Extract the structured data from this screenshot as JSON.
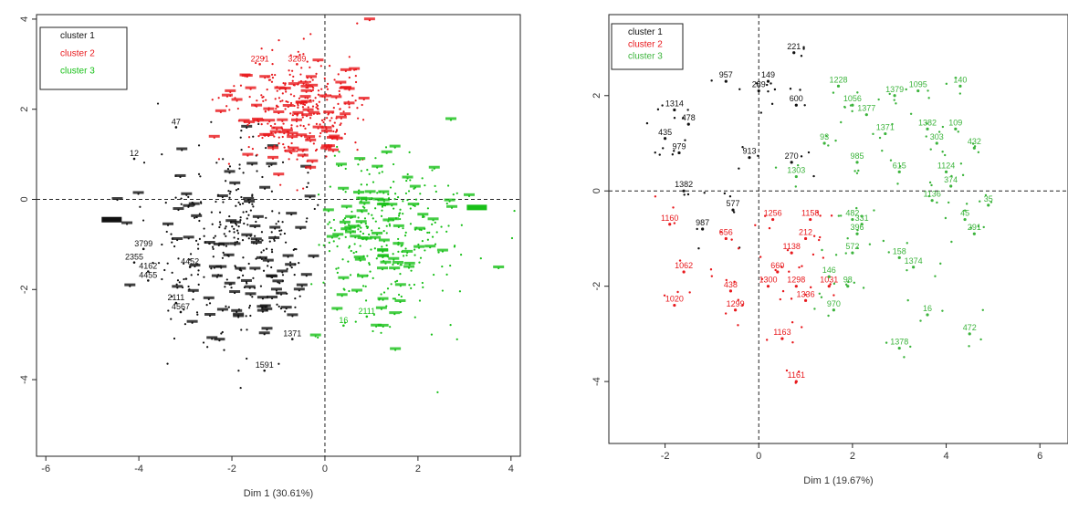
{
  "chart_data": [
    {
      "type": "scatter",
      "panel": "left",
      "xlabel": "Dim 1 (30.61%)",
      "ylabel": "",
      "xlim": [
        -6.2,
        4.2
      ],
      "ylim": [
        -5.7,
        4.1
      ],
      "xticks": [
        "-6",
        "-4",
        "-2",
        "0",
        "2",
        "4"
      ],
      "xtick_values": [
        -6,
        -4,
        -2,
        0,
        2,
        4
      ],
      "yticks": [
        "4",
        "2",
        "0",
        "-2",
        "-4"
      ],
      "ytick_values": [
        4,
        2,
        0,
        -2,
        -4
      ],
      "reference_lines": {
        "x": 0,
        "y": 0
      },
      "legend": {
        "position": "top-left",
        "entries": [
          {
            "label": "cluster 1",
            "color": "#111111"
          },
          {
            "label": "cluster 2",
            "color": "#e8181c"
          },
          {
            "label": "cluster 3",
            "color": "#18c018"
          }
        ]
      },
      "series": [
        {
          "name": "cluster 1",
          "color": "#111111",
          "region": "left and lower-left",
          "approx_count": 1400,
          "labeled_points": [
            {
              "label": "2355",
              "x": -4.1,
              "y": -1.4
            },
            {
              "label": "4162",
              "x": -3.8,
              "y": -1.6
            },
            {
              "label": "4455",
              "x": -3.8,
              "y": -1.8
            },
            {
              "label": "4567",
              "x": -3.1,
              "y": -2.5
            },
            {
              "label": "2111",
              "x": -3.2,
              "y": -2.3
            },
            {
              "label": "4452",
              "x": -2.9,
              "y": -1.5
            },
            {
              "label": "1371",
              "x": -0.7,
              "y": -3.1
            },
            {
              "label": "1591",
              "x": -1.3,
              "y": -3.8
            },
            {
              "label": "3799",
              "x": -3.9,
              "y": -1.1
            },
            {
              "label": "47",
              "x": -3.2,
              "y": 1.6
            },
            {
              "label": "12",
              "x": -4.1,
              "y": 0.9
            }
          ]
        },
        {
          "name": "cluster 2",
          "color": "#e8181c",
          "region": "upper-center",
          "approx_count": 1300,
          "labeled_points": [
            {
              "label": "2291",
              "x": -1.4,
              "y": 3.0
            },
            {
              "label": "3289",
              "x": -0.6,
              "y": 3.0
            }
          ]
        },
        {
          "name": "cluster 3",
          "color": "#18c018",
          "region": "right and lower-right",
          "approx_count": 1300,
          "labeled_points": [
            {
              "label": "2111",
              "x": 0.9,
              "y": -2.6
            },
            {
              "label": "16",
              "x": 0.4,
              "y": -2.8
            }
          ]
        }
      ]
    },
    {
      "type": "scatter",
      "panel": "right",
      "xlabel": "Dim 1 (19.67%)",
      "ylabel": "",
      "xlim": [
        -3.2,
        6.6
      ],
      "ylim": [
        -5.3,
        3.7
      ],
      "xticks": [
        "-2",
        "0",
        "2",
        "4",
        "6"
      ],
      "xtick_values": [
        -2,
        0,
        2,
        4,
        6
      ],
      "yticks": [
        "2",
        "0",
        "-2",
        "-4"
      ],
      "ytick_values": [
        2,
        0,
        -2,
        -4
      ],
      "reference_lines": {
        "x": 0,
        "y": 0
      },
      "legend": {
        "position": "top-left",
        "entries": [
          {
            "label": "cluster 1",
            "color": "#111111"
          },
          {
            "label": "cluster 2",
            "color": "#e8181c"
          },
          {
            "label": "cluster 3",
            "color": "#3cb43c"
          }
        ]
      },
      "series": [
        {
          "name": "cluster 1",
          "color": "#111111",
          "points": [
            {
              "label": "221",
              "x": 0.75,
              "y": 2.9
            },
            {
              "label": "957",
              "x": -0.7,
              "y": 2.3
            },
            {
              "label": "149",
              "x": 0.2,
              "y": 2.3
            },
            {
              "label": "289",
              "x": 0.0,
              "y": 2.1
            },
            {
              "label": "1314",
              "x": -1.8,
              "y": 1.7
            },
            {
              "label": "478",
              "x": -1.5,
              "y": 1.4
            },
            {
              "label": "600",
              "x": 0.8,
              "y": 1.8
            },
            {
              "label": "435",
              "x": -2.0,
              "y": 1.1
            },
            {
              "label": "979",
              "x": -1.7,
              "y": 0.8
            },
            {
              "label": "270",
              "x": 0.7,
              "y": 0.6
            },
            {
              "label": "1382",
              "x": -1.6,
              "y": 0.0
            },
            {
              "label": "577",
              "x": -0.55,
              "y": -0.4
            },
            {
              "label": "987",
              "x": -1.2,
              "y": -0.8
            },
            {
              "label": "913",
              "x": -0.2,
              "y": 0.7
            }
          ]
        },
        {
          "name": "cluster 2",
          "color": "#e8181c",
          "points": [
            {
              "label": "1256",
              "x": 0.3,
              "y": -0.6
            },
            {
              "label": "1158",
              "x": 1.1,
              "y": -0.6
            },
            {
              "label": "212",
              "x": 1.0,
              "y": -1.0
            },
            {
              "label": "1138",
              "x": 0.7,
              "y": -1.3
            },
            {
              "label": "660",
              "x": 0.4,
              "y": -1.7
            },
            {
              "label": "1031",
              "x": 1.5,
              "y": -2.0
            },
            {
              "label": "1298",
              "x": 0.8,
              "y": -2.0
            },
            {
              "label": "1300",
              "x": 0.2,
              "y": -2.0
            },
            {
              "label": "1336",
              "x": 1.0,
              "y": -2.3
            },
            {
              "label": "438",
              "x": -0.6,
              "y": -2.1
            },
            {
              "label": "1299",
              "x": -0.5,
              "y": -2.5
            },
            {
              "label": "1062",
              "x": -1.6,
              "y": -1.7
            },
            {
              "label": "1020",
              "x": -1.8,
              "y": -2.4
            },
            {
              "label": "1163",
              "x": 0.5,
              "y": -3.1
            },
            {
              "label": "1161",
              "x": 0.8,
              "y": -4.0
            },
            {
              "label": "656",
              "x": -0.7,
              "y": -1.0
            },
            {
              "label": "1160",
              "x": -1.9,
              "y": -0.7
            }
          ]
        },
        {
          "name": "cluster 3",
          "color": "#3cb43c",
          "points": [
            {
              "label": "1228",
              "x": 1.7,
              "y": 2.2
            },
            {
              "label": "1379",
              "x": 2.9,
              "y": 2.0
            },
            {
              "label": "1095",
              "x": 3.4,
              "y": 2.1
            },
            {
              "label": "140",
              "x": 4.3,
              "y": 2.2
            },
            {
              "label": "1056",
              "x": 2.0,
              "y": 1.8
            },
            {
              "label": "1371",
              "x": 2.7,
              "y": 1.2
            },
            {
              "label": "93",
              "x": 1.4,
              "y": 1.0
            },
            {
              "label": "1382",
              "x": 3.6,
              "y": 1.3
            },
            {
              "label": "109",
              "x": 4.2,
              "y": 1.3
            },
            {
              "label": "303",
              "x": 3.8,
              "y": 1.0
            },
            {
              "label": "432",
              "x": 4.6,
              "y": 0.9
            },
            {
              "label": "1124",
              "x": 4.0,
              "y": 0.4
            },
            {
              "label": "374",
              "x": 4.1,
              "y": 0.1
            },
            {
              "label": "615",
              "x": 3.0,
              "y": 0.4
            },
            {
              "label": "1136",
              "x": 3.7,
              "y": -0.2
            },
            {
              "label": "35",
              "x": 4.9,
              "y": -0.3
            },
            {
              "label": "45",
              "x": 4.4,
              "y": -0.6
            },
            {
              "label": "291",
              "x": 4.6,
              "y": -0.9
            },
            {
              "label": "331",
              "x": 2.2,
              "y": -0.7
            },
            {
              "label": "482",
              "x": 2.0,
              "y": -0.6
            },
            {
              "label": "396",
              "x": 2.1,
              "y": -0.9
            },
            {
              "label": "572",
              "x": 2.0,
              "y": -1.3
            },
            {
              "label": "158",
              "x": 3.0,
              "y": -1.4
            },
            {
              "label": "1374",
              "x": 3.3,
              "y": -1.6
            },
            {
              "label": "146",
              "x": 1.5,
              "y": -1.8
            },
            {
              "label": "98",
              "x": 1.9,
              "y": -2.0
            },
            {
              "label": "970",
              "x": 1.6,
              "y": -2.5
            },
            {
              "label": "16",
              "x": 3.6,
              "y": -2.6
            },
            {
              "label": "472",
              "x": 4.5,
              "y": -3.0
            },
            {
              "label": "1378",
              "x": 3.0,
              "y": -3.3
            },
            {
              "label": "1303",
              "x": 0.8,
              "y": 0.3
            },
            {
              "label": "1377",
              "x": 2.3,
              "y": 1.6
            },
            {
              "label": "985",
              "x": 2.1,
              "y": 0.6
            }
          ]
        }
      ]
    }
  ]
}
